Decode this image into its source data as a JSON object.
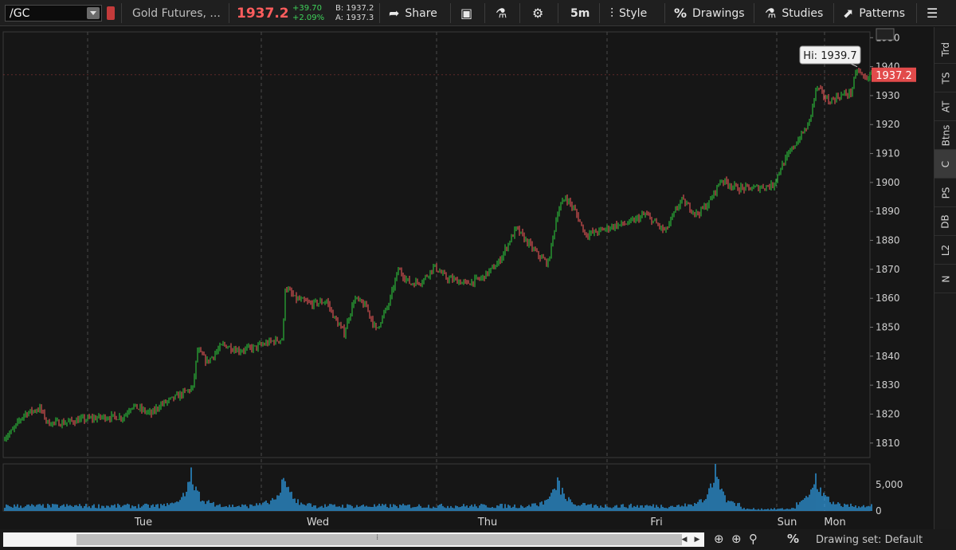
{
  "toolbar": {
    "symbol": "/GC",
    "description": "Gold Futures, ...",
    "last_price": "1937.2",
    "change": "+39.70",
    "change_pct": "+2.09%",
    "bid": "B: 1937.2",
    "ask": "A: 1937.3",
    "share": "Share",
    "timeframe": "5m",
    "style": "Style",
    "drawings": "Drawings",
    "studies": "Studies",
    "patterns": "Patterns"
  },
  "side_tabs": [
    "Trd",
    "TS",
    "AT",
    "Btns",
    "C",
    "PS",
    "DB",
    "L2",
    "N"
  ],
  "bottom": {
    "drawing_set": "Drawing set: Default"
  },
  "colors": {
    "up": "#2fd13f",
    "down": "#ff5f5f",
    "price_tag": "#e24b4b",
    "volume": "#2a89c7",
    "background": "#161616"
  },
  "chart_data": {
    "type": "candlestick",
    "symbol": "/GC",
    "interval": "5m",
    "x_labels": [
      "Tue",
      "Wed",
      "Thu",
      "Fri",
      "Sun",
      "Mon"
    ],
    "y_ticks": [
      1810,
      1820,
      1830,
      1840,
      1850,
      1860,
      1870,
      1880,
      1890,
      1900,
      1910,
      1920,
      1930,
      1940,
      1950
    ],
    "ylim": [
      1805,
      1952
    ],
    "last_price": 1937.2,
    "high_annotation": "Hi: 1939.7",
    "price_path": [
      [
        0,
        1811
      ],
      [
        15,
        1814
      ],
      [
        30,
        1820
      ],
      [
        50,
        1822
      ],
      [
        60,
        1817
      ],
      [
        80,
        1817
      ],
      [
        100,
        1818
      ],
      [
        130,
        1819
      ],
      [
        155,
        1819
      ],
      [
        165,
        1823
      ],
      [
        190,
        1820
      ],
      [
        200,
        1823
      ],
      [
        215,
        1825
      ],
      [
        235,
        1828
      ],
      [
        242,
        1829
      ],
      [
        248,
        1842
      ],
      [
        260,
        1838
      ],
      [
        280,
        1844
      ],
      [
        300,
        1842
      ],
      [
        320,
        1843
      ],
      [
        340,
        1845
      ],
      [
        355,
        1846
      ],
      [
        358,
        1864
      ],
      [
        370,
        1860
      ],
      [
        390,
        1858
      ],
      [
        410,
        1859
      ],
      [
        420,
        1853
      ],
      [
        432,
        1848
      ],
      [
        445,
        1860
      ],
      [
        460,
        1857
      ],
      [
        472,
        1849
      ],
      [
        488,
        1858
      ],
      [
        500,
        1870
      ],
      [
        515,
        1865
      ],
      [
        530,
        1866
      ],
      [
        545,
        1871
      ],
      [
        560,
        1867
      ],
      [
        575,
        1866
      ],
      [
        585,
        1865
      ],
      [
        605,
        1867
      ],
      [
        625,
        1872
      ],
      [
        640,
        1880
      ],
      [
        648,
        1884
      ],
      [
        660,
        1880
      ],
      [
        675,
        1875
      ],
      [
        688,
        1872
      ],
      [
        700,
        1890
      ],
      [
        710,
        1895
      ],
      [
        722,
        1890
      ],
      [
        735,
        1882
      ],
      [
        750,
        1883
      ],
      [
        770,
        1885
      ],
      [
        790,
        1886
      ],
      [
        810,
        1889
      ],
      [
        835,
        1883
      ],
      [
        855,
        1894
      ],
      [
        875,
        1889
      ],
      [
        890,
        1893
      ],
      [
        905,
        1901
      ],
      [
        925,
        1898
      ],
      [
        945,
        1898
      ],
      [
        970,
        1899
      ],
      [
        980,
        1905
      ],
      [
        995,
        1912
      ],
      [
        1015,
        1920
      ],
      [
        1025,
        1933
      ],
      [
        1040,
        1928
      ],
      [
        1055,
        1930
      ],
      [
        1068,
        1931
      ],
      [
        1076,
        1939
      ],
      [
        1085,
        1936
      ],
      [
        1095,
        1937
      ]
    ],
    "volume": {
      "y_ticks": [
        0,
        5000
      ],
      "ylim": [
        0,
        9000
      ],
      "spikes": [
        [
          240,
          7500
        ],
        [
          357,
          6500
        ],
        [
          700,
          6000
        ],
        [
          898,
          8600
        ],
        [
          1025,
          6500
        ]
      ]
    }
  }
}
